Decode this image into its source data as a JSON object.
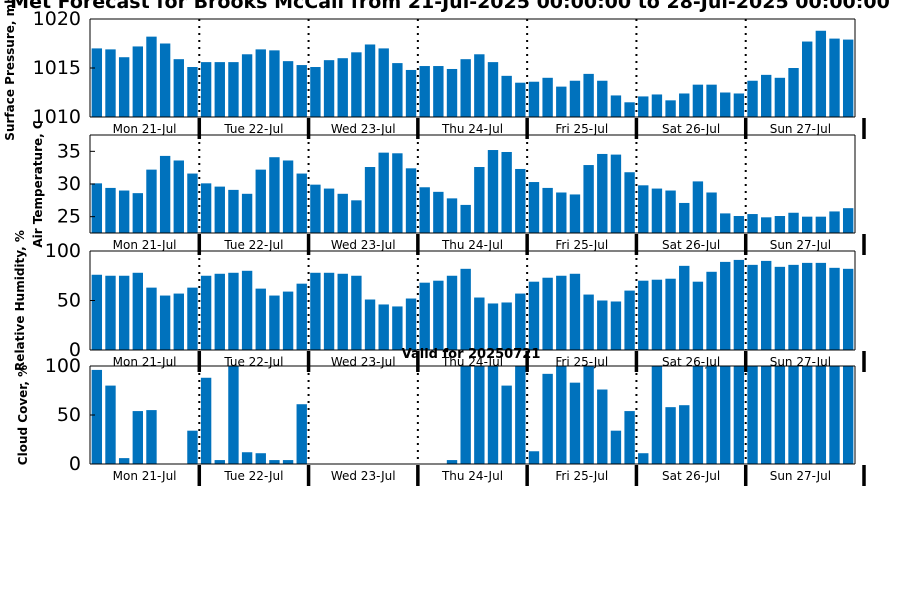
{
  "title": "Met Forecast for Brooks McCall from 21-Jul-2025 00:00:00 to 28-Jul-2025 00:00:00",
  "valid_label": "Valid for 20250721",
  "bar_color": "#0072bd",
  "chart_data": [
    {
      "type": "bar",
      "ylabel": "Surface Pressure, mb",
      "ylim": [
        1010,
        1020
      ],
      "yticks": [
        1010,
        1015,
        1020
      ],
      "day_labels": [
        "Mon 21-Jul",
        "Tue 22-Jul",
        "Wed 23-Jul",
        "Thu 24-Jul",
        "Fri 25-Jul",
        "Sat 26-Jul",
        "Sun 27-Jul"
      ],
      "values": [
        1017.0,
        1016.9,
        1016.1,
        1017.2,
        1018.2,
        1017.5,
        1015.9,
        1015.1,
        1015.6,
        1015.6,
        1015.6,
        1016.4,
        1016.9,
        1016.8,
        1015.7,
        1015.3,
        1015.1,
        1015.8,
        1016.0,
        1016.6,
        1017.4,
        1017.0,
        1015.5,
        1014.8,
        1015.2,
        1015.2,
        1014.9,
        1015.9,
        1016.4,
        1015.6,
        1014.2,
        1013.5,
        1013.6,
        1014.0,
        1013.1,
        1013.7,
        1014.4,
        1013.7,
        1012.2,
        1011.5,
        1012.1,
        1012.3,
        1011.7,
        1012.4,
        1013.3,
        1013.3,
        1012.5,
        1012.4,
        1013.7,
        1014.3,
        1014.0,
        1015.0,
        1017.7,
        1018.8,
        1018.0,
        1017.9
      ]
    },
    {
      "type": "bar",
      "ylabel": "Air Temperature, C",
      "ylim": [
        22.5,
        37.5
      ],
      "yticks": [
        25,
        30,
        35
      ],
      "day_labels": [
        "Mon 21-Jul",
        "Tue 22-Jul",
        "Wed 23-Jul",
        "Thu 24-Jul",
        "Fri 25-Jul",
        "Sat 26-Jul",
        "Sun 27-Jul"
      ],
      "values": [
        30.1,
        29.4,
        29.0,
        28.6,
        32.2,
        34.3,
        33.6,
        31.6,
        30.1,
        29.6,
        29.1,
        28.5,
        32.2,
        34.1,
        33.6,
        31.6,
        29.9,
        29.3,
        28.5,
        27.5,
        32.6,
        34.8,
        34.7,
        32.4,
        29.5,
        28.8,
        27.8,
        26.8,
        32.6,
        35.2,
        34.9,
        32.3,
        30.3,
        29.4,
        28.7,
        28.4,
        32.9,
        34.6,
        34.5,
        31.8,
        29.8,
        29.3,
        29.0,
        27.1,
        30.4,
        28.7,
        25.5,
        25.1,
        25.4,
        24.9,
        25.1,
        25.6,
        25.0,
        25.0,
        25.8,
        26.3
      ]
    },
    {
      "type": "bar",
      "ylabel": "Relative Humidity, %",
      "ylim": [
        0,
        100
      ],
      "yticks": [
        0,
        50,
        100
      ],
      "day_labels": [
        "Mon 21-Jul",
        "Tue 22-Jul",
        "Wed 23-Jul",
        "Thu 24-Jul",
        "Fri 25-Jul",
        "Sat 26-Jul",
        "Sun 27-Jul"
      ],
      "values": [
        76,
        75,
        75,
        78,
        63,
        55,
        57,
        63,
        75,
        77,
        78,
        80,
        62,
        55,
        59,
        67,
        78,
        78,
        77,
        75,
        51,
        46,
        44,
        52,
        68,
        70,
        75,
        82,
        53,
        47,
        48,
        57,
        69,
        73,
        75,
        77,
        56,
        50,
        49,
        60,
        70,
        71,
        72,
        85,
        69,
        79,
        89,
        91,
        86,
        90,
        84,
        86,
        88,
        88,
        83,
        82
      ]
    },
    {
      "type": "bar",
      "ylabel": "Cloud Cover, %",
      "ylim": [
        0,
        100
      ],
      "yticks": [
        0,
        50,
        100
      ],
      "day_labels": [
        "Mon 21-Jul",
        "Tue 22-Jul",
        "Wed 23-Jul",
        "Thu 24-Jul",
        "Fri 25-Jul",
        "Sat 26-Jul",
        "Sun 27-Jul"
      ],
      "values": [
        96,
        80,
        6,
        54,
        55,
        0,
        0,
        34,
        88,
        4,
        100,
        12,
        11,
        4,
        4,
        61,
        0,
        0,
        0,
        0,
        0,
        0,
        0,
        0,
        0,
        0,
        4,
        100,
        100,
        100,
        80,
        100,
        13,
        92,
        100,
        83,
        100,
        76,
        34,
        54,
        11,
        100,
        58,
        60,
        100,
        100,
        100,
        100,
        100,
        100,
        100,
        100,
        100,
        100,
        100,
        100
      ]
    }
  ]
}
